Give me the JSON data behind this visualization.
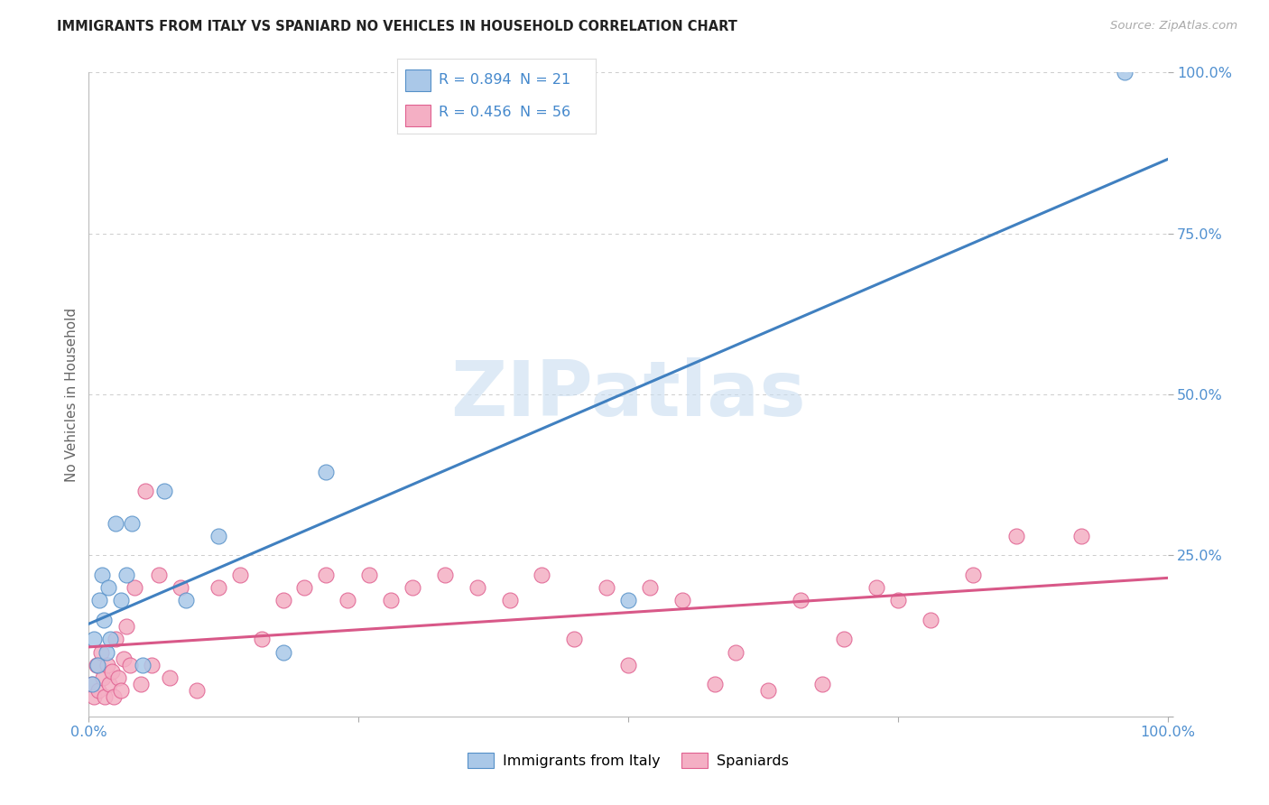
{
  "title": "IMMIGRANTS FROM ITALY VS SPANIARD NO VEHICLES IN HOUSEHOLD CORRELATION CHART",
  "source": "Source: ZipAtlas.com",
  "ylabel": "No Vehicles in Household",
  "italy_label": "Immigrants from Italy",
  "spain_label": "Spaniards",
  "italy_R": 0.894,
  "italy_N": 21,
  "spain_R": 0.456,
  "spain_N": 56,
  "italy_color": "#aac8e8",
  "italy_edge_color": "#5590c8",
  "italy_line_color": "#4080c0",
  "spain_color": "#f4afc4",
  "spain_edge_color": "#e06090",
  "spain_line_color": "#d85888",
  "background_color": "#ffffff",
  "grid_color": "#cccccc",
  "axis_label_color": "#5090d0",
  "legend_text_color": "#4488cc",
  "title_color": "#222222",
  "source_color": "#aaaaaa",
  "ylabel_color": "#666666",
  "watermark_color": "#c8ddf0",
  "italy_points_x": [
    0.3,
    0.5,
    0.8,
    1.0,
    1.2,
    1.4,
    1.6,
    1.8,
    2.0,
    2.5,
    3.0,
    3.5,
    4.0,
    5.0,
    7.0,
    9.0,
    12.0,
    18.0,
    22.0,
    50.0,
    96.0
  ],
  "italy_points_y": [
    5.0,
    12.0,
    8.0,
    18.0,
    22.0,
    15.0,
    10.0,
    20.0,
    12.0,
    30.0,
    18.0,
    22.0,
    30.0,
    8.0,
    35.0,
    18.0,
    28.0,
    10.0,
    38.0,
    18.0,
    100.0
  ],
  "spain_points_x": [
    0.3,
    0.5,
    0.7,
    0.9,
    1.1,
    1.3,
    1.5,
    1.7,
    1.9,
    2.1,
    2.3,
    2.5,
    2.7,
    3.0,
    3.2,
    3.5,
    3.8,
    4.2,
    4.8,
    5.2,
    5.8,
    6.5,
    7.5,
    8.5,
    10.0,
    12.0,
    14.0,
    16.0,
    18.0,
    20.0,
    22.0,
    24.0,
    26.0,
    28.0,
    30.0,
    33.0,
    36.0,
    39.0,
    42.0,
    45.0,
    48.0,
    50.0,
    52.0,
    55.0,
    58.0,
    60.0,
    63.0,
    66.0,
    68.0,
    70.0,
    73.0,
    75.0,
    78.0,
    82.0,
    86.0,
    92.0
  ],
  "spain_points_y": [
    5.0,
    3.0,
    8.0,
    4.0,
    10.0,
    6.0,
    3.0,
    8.0,
    5.0,
    7.0,
    3.0,
    12.0,
    6.0,
    4.0,
    9.0,
    14.0,
    8.0,
    20.0,
    5.0,
    35.0,
    8.0,
    22.0,
    6.0,
    20.0,
    4.0,
    20.0,
    22.0,
    12.0,
    18.0,
    20.0,
    22.0,
    18.0,
    22.0,
    18.0,
    20.0,
    22.0,
    20.0,
    18.0,
    22.0,
    12.0,
    20.0,
    8.0,
    20.0,
    18.0,
    5.0,
    10.0,
    4.0,
    18.0,
    5.0,
    12.0,
    20.0,
    18.0,
    15.0,
    22.0,
    28.0,
    28.0
  ],
  "xlim": [
    0,
    100
  ],
  "ylim": [
    0,
    100
  ],
  "ytick_vals": [
    0,
    25,
    50,
    75,
    100
  ],
  "ytick_labels_right": [
    "",
    "25.0%",
    "50.0%",
    "75.0%",
    "100.0%"
  ],
  "xtick_vals": [
    0,
    25,
    50,
    75,
    100
  ],
  "xtick_labels": [
    "0.0%",
    "",
    "",
    "",
    "100.0%"
  ]
}
